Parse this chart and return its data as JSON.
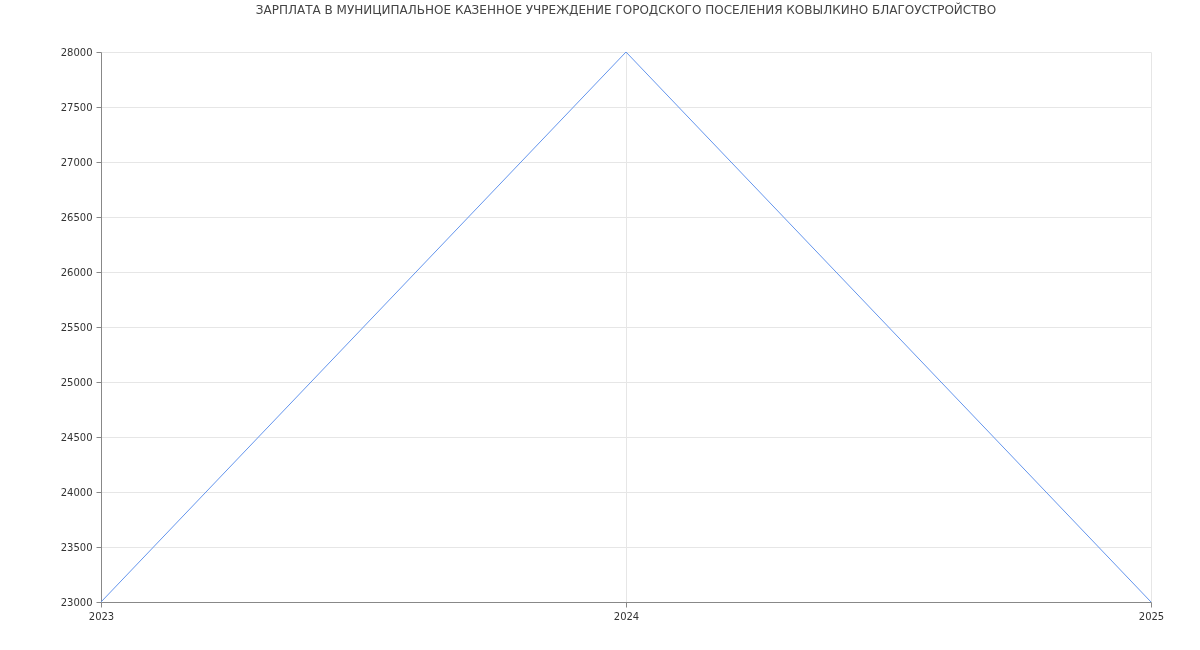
{
  "chart_data": {
    "type": "line",
    "title": "ЗАРПЛАТА В МУНИЦИПАЛЬНОЕ КАЗЕННОЕ УЧРЕЖДЕНИЕ ГОРОДСКОГО ПОСЕЛЕНИЯ КОВЫЛКИНО БЛАГОУСТРОЙСТВО",
    "x": [
      2023,
      2024,
      2025
    ],
    "series": [
      {
        "color": "#6495ed",
        "values": [
          23000,
          28000,
          23000
        ]
      }
    ],
    "xlim": [
      2023,
      2025
    ],
    "xticks": [
      2023,
      2024,
      2025
    ],
    "ylim": [
      23000,
      28000
    ],
    "yticks": [
      23000,
      23500,
      24000,
      24500,
      25000,
      25500,
      26000,
      26500,
      27000,
      27500,
      28000
    ],
    "grid": true,
    "marker": "none",
    "line_style": "solid"
  }
}
